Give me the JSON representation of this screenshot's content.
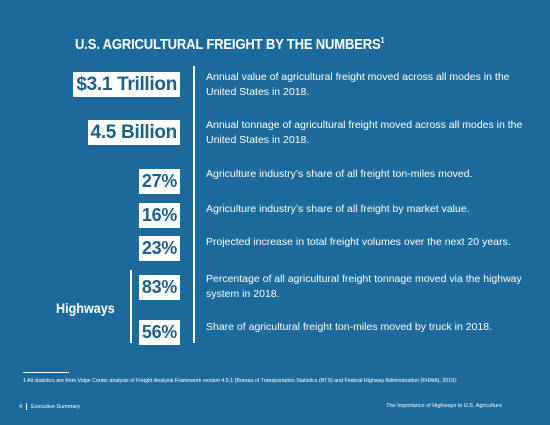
{
  "title": {
    "text": "U.S. AGRICULTURAL FREIGHT BY THE NUMBERS",
    "footnote_marker": "1"
  },
  "stats": [
    {
      "value": "$3.1 Trillion",
      "description": "Annual value of agricultural freight moved across all modes in the United States in 2018."
    },
    {
      "value": "4.5 Billion",
      "description": "Annual tonnage of agricultural freight moved across all modes in the United States in 2018."
    },
    {
      "value": "27%",
      "description": "Agriculture industry’s share of all freight ton-miles moved."
    },
    {
      "value": "16%",
      "description": "Agriculture industry’s share of all freight by market value."
    },
    {
      "value": "23%",
      "description": "Projected increase in total freight volumes over the next 20 years."
    },
    {
      "value": "83%",
      "description": "Percentage of all agricultural freight tonnage moved via the highway system in 2018."
    },
    {
      "value": "56%",
      "description": "Share of agricultural freight ton-miles moved by truck in 2018."
    }
  ],
  "highways_label": "Highways",
  "footnote": "1  All statistics are from Volpe Center analysis of Freight Analysis Framework version 4.5.1 (Bureau of Transportation Statistics (BTS) and Federal Highway Administration (FHWA), 2019).",
  "footer": {
    "page_number": "4",
    "section": "Executive Summary",
    "report_title": "The Importance of Highways to U.S. Agriculture"
  },
  "colors": {
    "background": "#1d6b9c",
    "box_text": "#1d5f8d",
    "text": "#ffffff"
  }
}
